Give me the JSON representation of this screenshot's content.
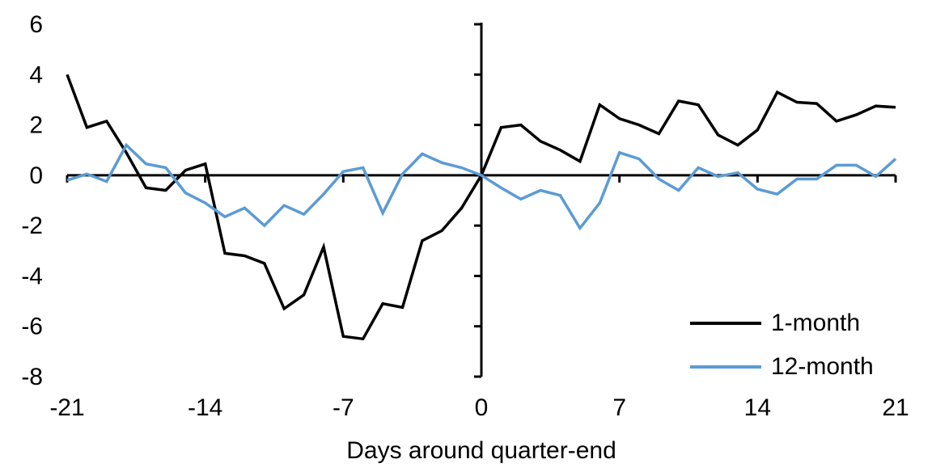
{
  "chart_data": {
    "type": "line",
    "title": "",
    "xlabel": "Days around quarter-end",
    "ylabel": "",
    "xlim": [
      -21,
      21
    ],
    "ylim": [
      -8,
      6
    ],
    "x_ticks": [
      -21,
      -14,
      -7,
      0,
      7,
      14,
      21
    ],
    "y_ticks": [
      6,
      4,
      2,
      0,
      -2,
      -4,
      -6,
      -8
    ],
    "grid": false,
    "legend_position": "lower-right",
    "axis_color": "#000000",
    "x": [
      -21,
      -20,
      -19,
      -18,
      -17,
      -16,
      -15,
      -14,
      -13,
      -12,
      -11,
      -10,
      -9,
      -8,
      -7,
      -6,
      -5,
      -4,
      -3,
      -2,
      -1,
      0,
      1,
      2,
      3,
      4,
      5,
      6,
      7,
      8,
      9,
      10,
      11,
      12,
      13,
      14,
      15,
      16,
      17,
      18,
      19,
      20,
      21
    ],
    "series": [
      {
        "name": "1-month",
        "color": "#000000",
        "values": [
          4.0,
          1.9,
          2.15,
          0.9,
          -0.5,
          -0.6,
          0.2,
          0.45,
          -3.1,
          -3.2,
          -3.5,
          -5.3,
          -4.75,
          -2.85,
          -6.4,
          -6.5,
          -5.1,
          -5.25,
          -2.6,
          -2.2,
          -1.3,
          0,
          1.9,
          2.0,
          1.35,
          1.0,
          0.55,
          2.8,
          2.25,
          2.0,
          1.65,
          2.95,
          2.8,
          1.6,
          1.2,
          1.8,
          3.3,
          2.9,
          2.85,
          2.15,
          2.4,
          2.75,
          2.7
        ]
      },
      {
        "name": "12-month",
        "color": "#5B9BD5",
        "values": [
          -0.2,
          0.05,
          -0.25,
          1.2,
          0.45,
          0.3,
          -0.7,
          -1.1,
          -1.65,
          -1.3,
          -2.0,
          -1.2,
          -1.55,
          -0.75,
          0.15,
          0.3,
          -1.5,
          0.05,
          0.85,
          0.5,
          0.3,
          0,
          -0.5,
          -0.95,
          -0.6,
          -0.8,
          -2.1,
          -1.1,
          0.9,
          0.65,
          -0.15,
          -0.6,
          0.3,
          -0.05,
          0.1,
          -0.55,
          -0.75,
          -0.15,
          -0.15,
          0.4,
          0.4,
          -0.05,
          0.65
        ]
      }
    ]
  }
}
